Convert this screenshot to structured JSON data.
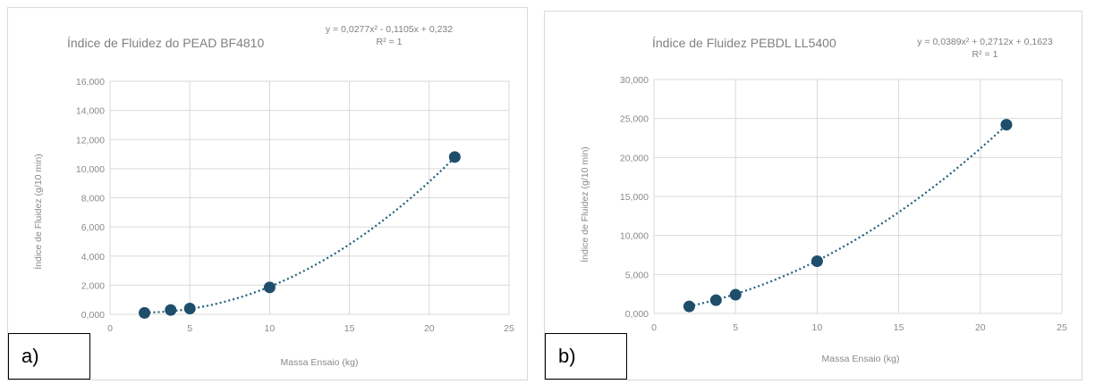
{
  "colors": {
    "marker": "#1f4e6b",
    "trend": "#1f5f7a",
    "grid": "#d9d9d9"
  },
  "chart_data": [
    {
      "type": "scatter",
      "panel_label": "a)",
      "title": "Índice de Fluidez do PEAD BF4810",
      "equation": "y = 0,0277x² - 0,1105x + 0,232",
      "r2": "R² = 1",
      "trendline": {
        "type": "polynomial",
        "coefficients": [
          0.0277,
          -0.1105,
          0.232
        ]
      },
      "xlabel": "Massa Ensaio (kg)",
      "ylabel": "Índice de Fluidez (g/10 min)",
      "xlim": [
        0,
        25
      ],
      "ylim": [
        0,
        16
      ],
      "xticks": [
        0,
        5,
        10,
        15,
        20,
        25
      ],
      "yticks": [
        0,
        2,
        4,
        6,
        8,
        10,
        12,
        14,
        16
      ],
      "ytick_labels": [
        "0,000",
        "2,000",
        "4,000",
        "6,000",
        "8,000",
        "10,000",
        "12,000",
        "14,000",
        "16,000"
      ],
      "x": [
        2.16,
        3.8,
        5,
        10,
        21.6
      ],
      "y": [
        0.1,
        0.3,
        0.4,
        1.85,
        10.8
      ],
      "grid": true
    },
    {
      "type": "scatter",
      "panel_label": "b)",
      "title": "Índice de Fluidez PEBDL LL5400",
      "equation": "y = 0,0389x² + 0,2712x + 0,1623",
      "r2": "R² = 1",
      "trendline": {
        "type": "polynomial",
        "coefficients": [
          0.0389,
          0.2712,
          0.1623
        ]
      },
      "xlabel": "Massa Ensaio (kg)",
      "ylabel": "Índice de Fluidez (g/10 min)",
      "xlim": [
        0,
        25
      ],
      "ylim": [
        0,
        30
      ],
      "xticks": [
        0,
        5,
        10,
        15,
        20,
        25
      ],
      "yticks": [
        0,
        5,
        10,
        15,
        20,
        25,
        30
      ],
      "ytick_labels": [
        "0,000",
        "5,000",
        "10,000",
        "15,000",
        "20,000",
        "25,000",
        "30,000"
      ],
      "x": [
        2.16,
        3.8,
        5,
        10,
        21.6
      ],
      "y": [
        0.9,
        1.7,
        2.4,
        6.7,
        24.2
      ],
      "grid": true
    }
  ]
}
